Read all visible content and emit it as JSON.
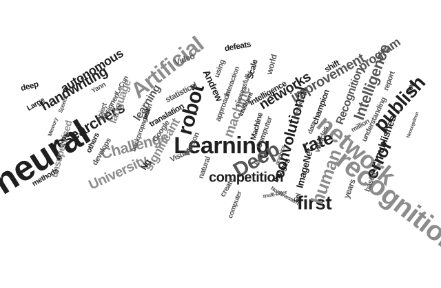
{
  "palette": {
    "dark": "#1f1f1f",
    "mid": "#555555",
    "light": "#8c8c8c",
    "background": "#ffffff"
  },
  "words": [
    "neural",
    "recognition",
    "network",
    "Learning",
    "Artificial",
    "Deep",
    "robot",
    "competition",
    "publish",
    "Intelligence",
    "convolutional",
    "error",
    "first",
    "rate",
    "human",
    "Challenge",
    "University",
    "researchers",
    "handwriting",
    "autonomous",
    "networks",
    "improvement",
    "machine",
    "language",
    "significant",
    "unsupervised",
    "program",
    "Recognition",
    "publishes",
    "ImageNet",
    "learning",
    "statistical",
    "translation",
    "champion",
    "understanding",
    "intelligence",
    "Video",
    "Google",
    "Computer",
    "images",
    "world",
    "Scale",
    "approach",
    "Andrew",
    "Ng",
    "Visual",
    "defeats",
    "designed",
    "methods",
    "LeCun",
    "Yann",
    "deep",
    "Large",
    "object",
    "develops",
    "others",
    "create",
    "vehicles",
    "million",
    "shift",
    "interaction",
    "successfully",
    "Machine",
    "data",
    "computer",
    "years",
    "based",
    "new",
    "report",
    "backpropagation",
    "Watson",
    "natural",
    "multi-layer",
    "Northwestern",
    "using",
    "Fei",
    "test",
    "Memory",
    "intelligent",
    "large",
    "Perceptrons",
    "graphics",
    "Speech",
    "Neocognitron"
  ]
}
